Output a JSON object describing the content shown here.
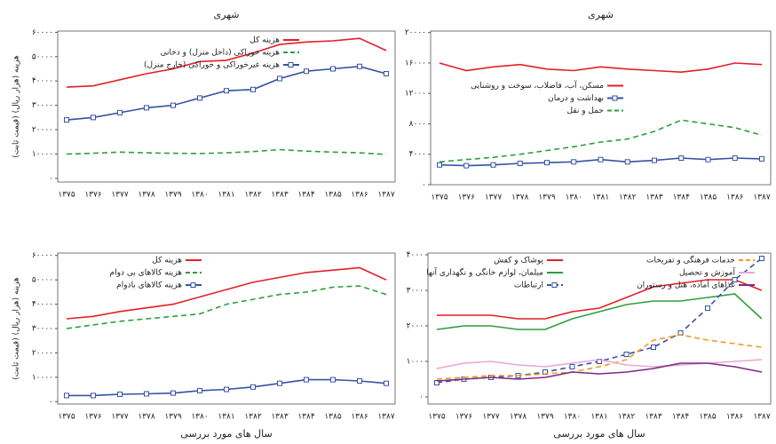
{
  "chart_data": [
    {
      "type": "line",
      "title": "شهری",
      "y_label": "هزینه (هزار ریال) (قیمت ثابت)",
      "categories": [
        "۱۳۷۵",
        "۱۳۷۶",
        "۱۳۷۷",
        "۱۳۷۸",
        "۱۳۷۹",
        "۱۳۸۰",
        "۱۳۸۱",
        "۱۳۸۲",
        "۱۳۸۳",
        "۱۳۸۴",
        "۱۳۸۵",
        "۱۳۸۶",
        "۱۳۸۷"
      ],
      "ylim": [
        -1500,
        60500
      ],
      "yticks": [
        {
          "value": 0,
          "label": "۰"
        },
        {
          "value": 10000,
          "label": "۱۰۰۰۰"
        },
        {
          "value": 20000,
          "label": "۲۰۰۰۰"
        },
        {
          "value": 30000,
          "label": "۳۰۰۰۰"
        },
        {
          "value": 40000,
          "label": "۴۰۰۰۰"
        },
        {
          "value": 50000,
          "label": "۵۰۰۰۰"
        },
        {
          "value": 60000,
          "label": "۶۰۰۰۰"
        }
      ],
      "legend": "upper-center",
      "series": [
        {
          "name": "هزینه کل",
          "color": "#e31f26",
          "values": [
            37500,
            38000,
            40500,
            43000,
            45000,
            48000,
            48500,
            51500,
            55000,
            56000,
            56500,
            57500,
            52500
          ]
        },
        {
          "name": "هزینه خوراکی (داخل منزل) و دخانی",
          "color": "#2e9e3e",
          "dash": true,
          "values": [
            10000,
            10300,
            10800,
            10500,
            10300,
            10200,
            10500,
            11000,
            11800,
            11200,
            10800,
            10500,
            9800
          ]
        },
        {
          "name": "هزینه غیرخوراکی و خوراکی (خارج منزل)",
          "color": "#3552a4",
          "marker": "square",
          "values": [
            24000,
            25000,
            27000,
            29000,
            30000,
            33000,
            36000,
            36500,
            41000,
            44000,
            45000,
            46000,
            43000
          ]
        }
      ]
    },
    {
      "type": "line",
      "title": "شهری",
      "categories": [
        "۱۳۷۵",
        "۱۳۷۶",
        "۱۳۷۷",
        "۱۳۷۸",
        "۱۳۷۹",
        "۱۳۸۰",
        "۱۳۸۱",
        "۱۳۸۲",
        "۱۳۸۳",
        "۱۳۸۴",
        "۱۳۸۵",
        "۱۳۸۶",
        "۱۳۸۷"
      ],
      "ylim": [
        0,
        20200
      ],
      "yticks": [
        {
          "value": 0,
          "label": "۰"
        },
        {
          "value": 4000,
          "label": "۴۰۰۰"
        },
        {
          "value": 8000,
          "label": "۸۰۰۰"
        },
        {
          "value": 12000,
          "label": "۱۲۰۰۰"
        },
        {
          "value": 16000,
          "label": "۱۶۰۰۰"
        },
        {
          "value": 20000,
          "label": "۲۰۰۰۰"
        }
      ],
      "legend": "center-left",
      "series": [
        {
          "name": "مسکن، آب، فاضلاب، سوخت و روشنایی",
          "color": "#e31f26",
          "values": [
            16000,
            15000,
            15500,
            15800,
            15200,
            15000,
            15500,
            15200,
            15000,
            14800,
            15200,
            16000,
            15800
          ]
        },
        {
          "name": "بهداشت و درمان",
          "color": "#3552a4",
          "marker": "square",
          "values": [
            2600,
            2500,
            2600,
            2800,
            2900,
            3000,
            3300,
            3000,
            3200,
            3500,
            3300,
            3500,
            3400
          ]
        },
        {
          "name": "حمل و نقل",
          "color": "#2e9e3e",
          "dash": true,
          "values": [
            3000,
            3300,
            3600,
            4000,
            4500,
            5000,
            5600,
            6000,
            7000,
            8500,
            8000,
            7500,
            6500
          ]
        }
      ]
    },
    {
      "type": "line",
      "y_label": "هزینه (هزار ریال) (قیمت ثابت)",
      "x_label": "سال های مورد بررسی",
      "categories": [
        "۱۳۷۵",
        "۱۳۷۶",
        "۱۳۷۷",
        "۱۳۷۸",
        "۱۳۷۹",
        "۱۳۸۰",
        "۱۳۸۱",
        "۱۳۸۲",
        "۱۳۸۳",
        "۱۳۸۴",
        "۱۳۸۵",
        "۱۳۸۶",
        "۱۳۸۷"
      ],
      "ylim": [
        -1000,
        61000
      ],
      "yticks": [
        {
          "value": 0,
          "label": "۰"
        },
        {
          "value": 10000,
          "label": "۱۰۰۰۰"
        },
        {
          "value": 20000,
          "label": "۲۰۰۰۰"
        },
        {
          "value": 30000,
          "label": "۳۰۰۰۰"
        },
        {
          "value": 40000,
          "label": "۴۰۰۰۰"
        },
        {
          "value": 50000,
          "label": "۵۰۰۰۰"
        },
        {
          "value": 60000,
          "label": "۶۰۰۰۰"
        }
      ],
      "legend": "upper-left",
      "series": [
        {
          "name": "هزینه کل",
          "color": "#e31f26",
          "values": [
            34000,
            35000,
            37000,
            38500,
            40000,
            43000,
            46000,
            49000,
            51000,
            53000,
            54000,
            55000,
            50000
          ]
        },
        {
          "name": "هزینه کالاهای بی دوام",
          "color": "#2e9e3e",
          "dash": true,
          "values": [
            30000,
            31500,
            33000,
            34000,
            35000,
            36000,
            40000,
            42000,
            44000,
            45000,
            47000,
            47500,
            44000
          ]
        },
        {
          "name": "هزینه کالاهای بادوام",
          "color": "#3552a4",
          "marker": "square",
          "values": [
            2500,
            2500,
            3000,
            3200,
            3500,
            4500,
            5000,
            6000,
            7500,
            9000,
            9000,
            8500,
            7500
          ]
        }
      ]
    },
    {
      "type": "line",
      "x_label": "سال های مورد بررسی",
      "categories": [
        "۱۳۷۵",
        "۱۳۷۶",
        "۱۳۷۷",
        "۱۳۷۸",
        "۱۳۷۹",
        "۱۳۸۰",
        "۱۳۸۱",
        "۱۳۸۲",
        "۱۳۸۳",
        "۱۳۸۴",
        "۱۳۸۵",
        "۱۳۸۶",
        "۱۳۸۷"
      ],
      "ylim": [
        -200,
        4050
      ],
      "yticks": [
        {
          "value": 0,
          "label": "۰"
        },
        {
          "value": 1000,
          "label": "۱۰۰۰"
        },
        {
          "value": 2000,
          "label": "۲۰۰۰"
        },
        {
          "value": 3000,
          "label": "۳۰۰۰"
        },
        {
          "value": 4000,
          "label": "۴۰۰۰"
        }
      ],
      "legend": "upper-left",
      "series": [
        {
          "name": "پوشاک و کفش",
          "color": "#e31f26",
          "values": [
            2300,
            2300,
            2300,
            2200,
            2200,
            2400,
            2500,
            2800,
            3100,
            3200,
            3300,
            3300,
            3000
          ]
        },
        {
          "name": "مبلمان، لوازم خانگی و نگهداری آنها",
          "color": "#2e9e3e",
          "values": [
            1900,
            2000,
            2000,
            1900,
            1900,
            2200,
            2400,
            2600,
            2700,
            2700,
            2800,
            2900,
            2200
          ]
        },
        {
          "name": "ارتباطات",
          "color": "#3552a4",
          "marker": "square",
          "dash": true,
          "values": [
            400,
            500,
            550,
            600,
            700,
            850,
            1000,
            1200,
            1400,
            1800,
            2500,
            3300,
            3900
          ]
        },
        {
          "name": "خدمات فرهنگی و تفریحات",
          "color": "#f39a1e",
          "dash": true,
          "values": [
            500,
            550,
            600,
            600,
            650,
            700,
            850,
            1050,
            1600,
            1750,
            1600,
            1500,
            1400
          ]
        },
        {
          "name": "آموزش و تحصیل",
          "color": "#e6a7d6",
          "values": [
            800,
            950,
            1000,
            900,
            850,
            950,
            1050,
            900,
            850,
            900,
            950,
            1000,
            1050
          ]
        },
        {
          "name": "غذاهای آماده، هتل و رستوران",
          "color": "#7b2a83",
          "values": [
            450,
            500,
            550,
            500,
            550,
            700,
            650,
            700,
            800,
            950,
            950,
            850,
            700
          ]
        }
      ]
    }
  ]
}
